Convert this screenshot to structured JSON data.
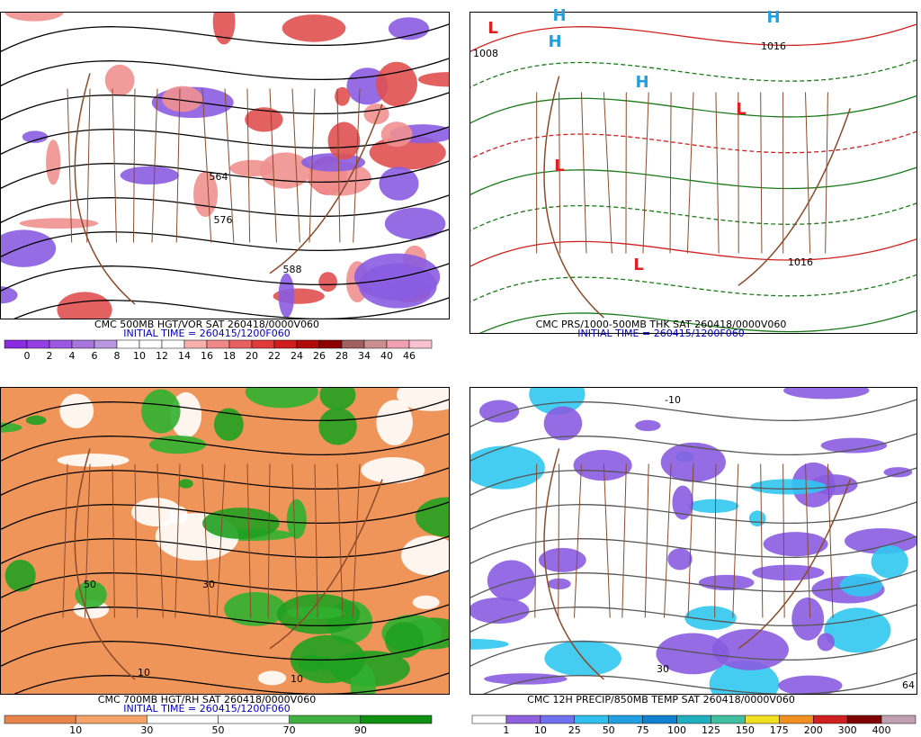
{
  "panels": [
    {
      "caption": "CMC 500MB HGT/VOR SAT 260418/0000V060",
      "initial_time": "INITIAL TIME = 260415/1200F060",
      "map_labels": [
        "576",
        "588",
        "564"
      ],
      "colorbar": {
        "labels": [
          "0",
          "2",
          "4",
          "6",
          "8",
          "10",
          "12",
          "14",
          "16",
          "18",
          "20",
          "22",
          "24",
          "26",
          "28",
          "34",
          "40",
          "46"
        ],
        "colors": [
          "#8a2be2",
          "#9440e4",
          "#9c58e2",
          "#a874de",
          "#b896e0",
          "#ffffff",
          "#ffffff",
          "#ffffff",
          "#f6b0b0",
          "#f08888",
          "#e86060",
          "#e03a3a",
          "#d01e1e",
          "#b00a0a",
          "#8c0000",
          "#a06060",
          "#c89090",
          "#f0a0b0",
          "#f8c0d0"
        ]
      }
    },
    {
      "caption": "CMC PRS/1000-500MB THK SAT 260418/0000V060",
      "initial_time": "INITIAL TIME = 260415/1200F060",
      "map_labels": [
        "H",
        "H",
        "H",
        "H",
        "L",
        "L",
        "L",
        "L",
        "1008",
        "1016",
        "1016"
      ]
    },
    {
      "caption": "CMC 700MB HGT/RH SAT 260418/0000V060",
      "initial_time": "INITIAL TIME = 260415/1200F060",
      "map_labels": [
        "50",
        "10",
        "30",
        "10"
      ],
      "colorbar": {
        "labels": [
          "10",
          "30",
          "50",
          "70",
          "90"
        ],
        "colors": [
          "#e8844a",
          "#f4a468",
          "#ffffff",
          "#ffffff",
          "#40b040",
          "#109010"
        ]
      }
    },
    {
      "caption": "CMC 12H PRECIP/850MB TEMP SAT 260418/0000V060",
      "map_labels": [
        "-10",
        "30",
        "64"
      ],
      "colorbar": {
        "labels": [
          "1",
          "10",
          "25",
          "50",
          "75",
          "100",
          "125",
          "150",
          "175",
          "200",
          "300",
          "400"
        ],
        "colors": [
          "#ffffff",
          "#9060e0",
          "#7070f0",
          "#30c0f0",
          "#20a0e0",
          "#1080d0",
          "#20b0c0",
          "#40c0a0",
          "#f0e020",
          "#f09020",
          "#d02020",
          "#800000",
          "#c0a0b0"
        ]
      }
    }
  ]
}
